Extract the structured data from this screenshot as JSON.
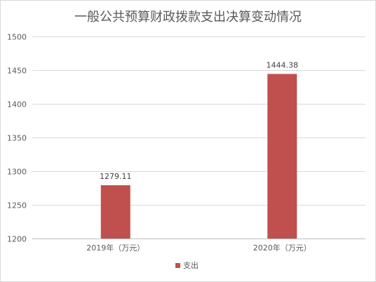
{
  "chart_data": {
    "type": "bar",
    "title": "一般公共预算财政拨款支出决算变动情况",
    "categories": [
      "2019年（万元）",
      "2020年（万元）"
    ],
    "series": [
      {
        "name": "支出",
        "values": [
          1279.11,
          1444.38
        ],
        "color": "#c0504d"
      }
    ],
    "data_labels": [
      "1279.11",
      "1444.38"
    ],
    "ylim": [
      1200,
      1500
    ],
    "yticks": [
      1200,
      1250,
      1300,
      1350,
      1400,
      1450,
      1500
    ],
    "grid": true,
    "legend_position": "bottom"
  }
}
